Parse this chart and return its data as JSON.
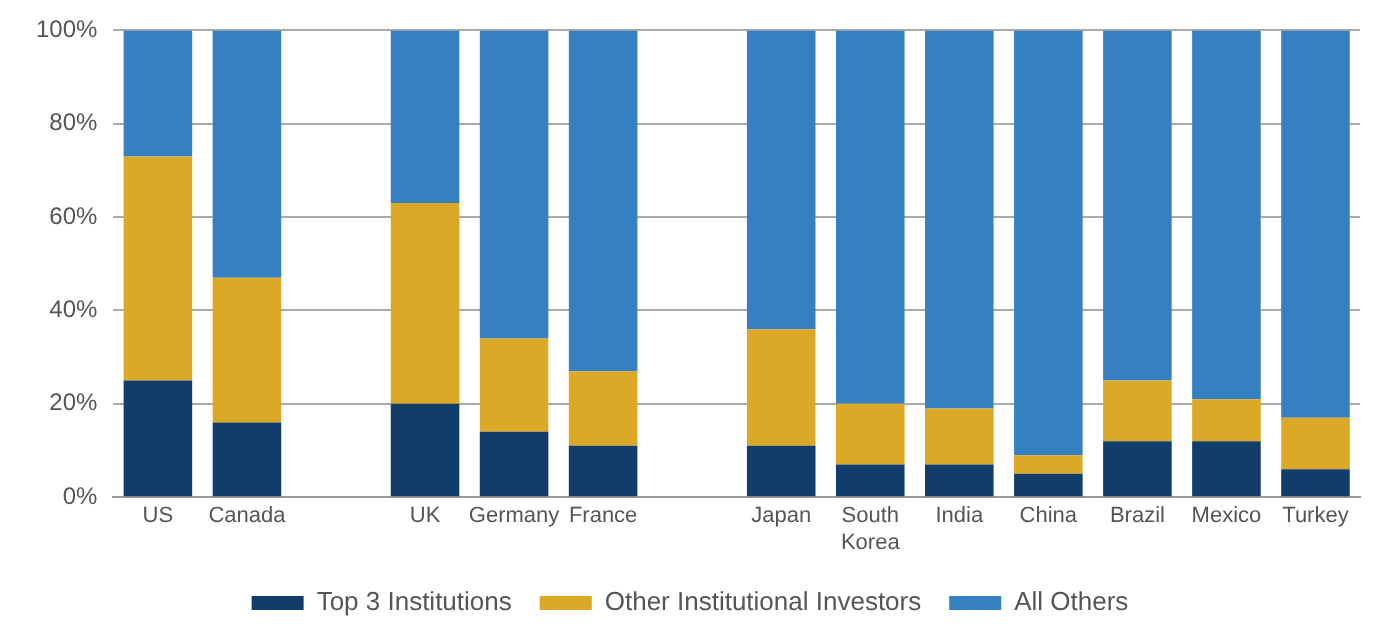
{
  "chart_data": {
    "type": "bar",
    "stacked": true,
    "categories": [
      "US",
      "Canada",
      null,
      "UK",
      "Germany",
      "France",
      null,
      "Japan",
      "South Korea",
      "India",
      "China",
      "Brazil",
      "Mexico",
      "Turkey"
    ],
    "series": [
      {
        "name": "Top 3 Institutions",
        "color": "#123d6a",
        "values": [
          25,
          16,
          null,
          20,
          14,
          11,
          null,
          11,
          7,
          7,
          5,
          12,
          12,
          6
        ]
      },
      {
        "name": "Other Institutional Investors",
        "color": "#dba827",
        "values": [
          48,
          31,
          null,
          43,
          20,
          16,
          null,
          25,
          13,
          12,
          4,
          13,
          9,
          11
        ]
      },
      {
        "name": "All Others",
        "color": "#3580c0",
        "values": [
          27,
          53,
          null,
          37,
          66,
          73,
          null,
          64,
          80,
          81,
          91,
          75,
          79,
          83
        ]
      }
    ],
    "ylim": [
      0,
      100
    ],
    "yticks": [
      {
        "value": 0,
        "label": "0%"
      },
      {
        "value": 20,
        "label": "20%"
      },
      {
        "value": 40,
        "label": "40%"
      },
      {
        "value": 60,
        "label": "60%"
      },
      {
        "value": 80,
        "label": "80%"
      },
      {
        "value": 100,
        "label": "100%"
      }
    ],
    "grid": "y",
    "legend": "bottom"
  }
}
